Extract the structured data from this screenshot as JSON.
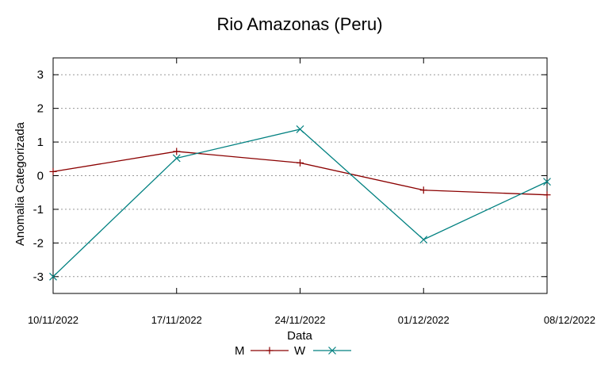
{
  "chart_data": {
    "type": "line",
    "title": "Rio Amazonas (Peru)",
    "xlabel": "Data",
    "ylabel": "Anomalia Categorizada",
    "categories": [
      "10/11/2022",
      "17/11/2022",
      "24/11/2022",
      "01/12/2022",
      "08/12/2022"
    ],
    "y_ticks": [
      "-3",
      "-2",
      "-1",
      "0",
      "1",
      "2",
      "3"
    ],
    "ylim": [
      -3.5,
      3.5
    ],
    "grid": true,
    "legend_position": "bottom-center",
    "series": [
      {
        "name": "M",
        "color": "#8b0000",
        "marker": "plus",
        "values": [
          0.12,
          0.72,
          0.38,
          -0.43,
          -0.57
        ]
      },
      {
        "name": "W",
        "color": "#008080",
        "marker": "cross",
        "values": [
          -3.0,
          0.52,
          1.38,
          -1.9,
          -0.18
        ]
      }
    ]
  }
}
